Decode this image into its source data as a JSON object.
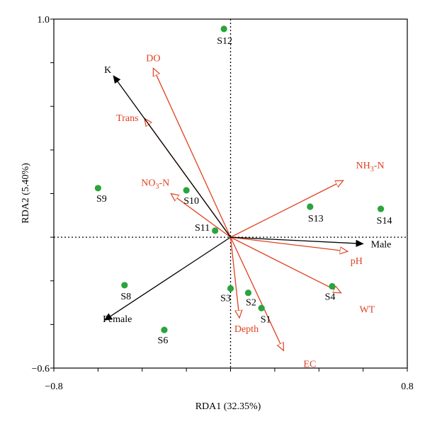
{
  "chart_data": {
    "type": "scatter",
    "xlabel": "RDA1 (32.35%)",
    "ylabel": "RDA2 (5.40%)",
    "xlim": [
      -0.8,
      0.8
    ],
    "ylim": [
      -0.6,
      1.0
    ],
    "x_ticks": [
      -0.8,
      0.8
    ],
    "x_tick_labels": [
      "−0.8",
      "0.8"
    ],
    "y_ticks": [
      -0.6,
      1.0
    ],
    "y_tick_labels": [
      "−0.6",
      "1.0"
    ],
    "grid": false,
    "reference_lines": {
      "x": 0,
      "y": 0,
      "style": "dotted"
    },
    "colors": {
      "sites": "#2aa43c",
      "environmental": "#e0401f",
      "species": "#000000"
    },
    "sites": [
      {
        "label": "S1",
        "x": 0.14,
        "y": -0.325
      },
      {
        "label": "S2",
        "x": 0.08,
        "y": -0.255
      },
      {
        "label": "S3",
        "x": 0.0,
        "y": -0.235
      },
      {
        "label": "S4",
        "x": 0.46,
        "y": -0.225
      },
      {
        "label": "S6",
        "x": -0.3,
        "y": -0.425
      },
      {
        "label": "S8",
        "x": -0.48,
        "y": -0.22
      },
      {
        "label": "S9",
        "x": -0.6,
        "y": 0.225
      },
      {
        "label": "S10",
        "x": -0.2,
        "y": 0.215
      },
      {
        "label": "S11",
        "x": -0.07,
        "y": 0.03
      },
      {
        "label": "S12",
        "x": -0.03,
        "y": 0.955
      },
      {
        "label": "S13",
        "x": 0.36,
        "y": 0.14
      },
      {
        "label": "S14",
        "x": 0.68,
        "y": 0.13
      }
    ],
    "environmental_vectors": [
      {
        "label": "DO",
        "sub": "",
        "suffix": "",
        "x": -0.35,
        "y": 0.775
      },
      {
        "label": "Trans",
        "sub": "",
        "suffix": "",
        "x": -0.39,
        "y": 0.545
      },
      {
        "label": "NO",
        "sub": "3",
        "suffix": "-N",
        "x": -0.27,
        "y": 0.2
      },
      {
        "label": "NH",
        "sub": "3",
        "suffix": "-N",
        "x": 0.51,
        "y": 0.26
      },
      {
        "label": "pH",
        "sub": "",
        "suffix": "",
        "x": 0.53,
        "y": -0.065
      },
      {
        "label": "WT",
        "sub": "",
        "suffix": "",
        "x": 0.5,
        "y": -0.255
      },
      {
        "label": "Depth",
        "sub": "",
        "suffix": "",
        "x": 0.04,
        "y": -0.37
      },
      {
        "label": "EC",
        "sub": "",
        "suffix": "",
        "x": 0.24,
        "y": -0.52
      }
    ],
    "species_vectors": [
      {
        "label": "K",
        "x": -0.53,
        "y": 0.74
      },
      {
        "label": "Male",
        "x": 0.6,
        "y": -0.03
      },
      {
        "label": "Female",
        "x": -0.57,
        "y": -0.38
      }
    ]
  }
}
